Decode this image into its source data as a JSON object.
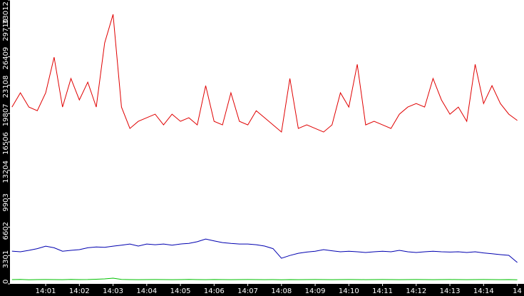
{
  "chart_data": {
    "type": "line",
    "x": [
      840,
      840.25,
      840.5,
      840.75,
      841,
      841.25,
      841.5,
      841.75,
      842,
      842.25,
      842.5,
      842.75,
      843,
      843.25,
      843.5,
      843.75,
      844,
      844.25,
      844.5,
      844.75,
      845,
      845.25,
      845.5,
      845.75,
      846,
      846.25,
      846.5,
      846.75,
      847,
      847.25,
      847.5,
      847.75,
      848,
      848.25,
      848.5,
      848.75,
      849,
      849.25,
      849.5,
      849.75,
      850,
      850.25,
      850.5,
      850.75,
      851,
      851.25,
      851.5,
      851.75,
      852,
      852.25,
      852.5,
      852.75,
      853,
      853.25,
      853.5,
      853.75,
      854,
      854.25,
      854.5,
      854.75,
      855
    ],
    "series": [
      {
        "color": "#e00000",
        "values": [
          20560,
          22220,
          20560,
          20140,
          22220,
          26360,
          20560,
          23880,
          21390,
          23460,
          20560,
          28020,
          31340,
          20560,
          18070,
          18900,
          19320,
          19730,
          18490,
          19730,
          18900,
          19320,
          18490,
          23050,
          18900,
          18490,
          22220,
          18900,
          18490,
          20140,
          19320,
          18490,
          17660,
          23880,
          18070,
          18490,
          18070,
          17660,
          18490,
          22220,
          20560,
          25530,
          18490,
          18900,
          18490,
          18070,
          19730,
          20560,
          20970,
          20560,
          23880,
          21390,
          19730,
          20560,
          18900,
          25530,
          20970,
          23050,
          20970,
          19730,
          19000
        ]
      },
      {
        "color": "#0000b0",
        "values": [
          3810,
          3730,
          3900,
          4100,
          4390,
          4200,
          3800,
          3900,
          3980,
          4200,
          4300,
          4250,
          4390,
          4500,
          4640,
          4400,
          4640,
          4550,
          4640,
          4500,
          4640,
          4700,
          4900,
          5220,
          5000,
          4800,
          4700,
          4640,
          4640,
          4550,
          4400,
          4100,
          2980,
          3300,
          3560,
          3700,
          3800,
          3980,
          3850,
          3730,
          3800,
          3730,
          3650,
          3730,
          3800,
          3730,
          3900,
          3730,
          3650,
          3730,
          3800,
          3730,
          3700,
          3730,
          3650,
          3730,
          3600,
          3500,
          3400,
          3320,
          2490
        ]
      },
      {
        "color": "#00c000",
        "values": [
          500,
          520,
          480,
          500,
          510,
          500,
          490,
          520,
          500,
          510,
          540,
          580,
          660,
          520,
          500,
          490,
          500,
          510,
          500,
          490,
          500,
          520,
          500,
          490,
          510,
          500,
          490,
          500,
          510,
          500,
          490,
          500,
          480,
          500,
          490,
          500,
          510,
          500,
          490,
          500,
          510,
          500,
          490,
          500,
          510,
          500,
          490,
          500,
          510,
          500,
          490,
          500,
          510,
          500,
          490,
          500,
          510,
          500,
          490,
          500,
          480
        ]
      }
    ],
    "xlim": [
      839.94,
      855.2
    ],
    "xticks": [
      {
        "value": 841,
        "label": "14:01"
      },
      {
        "value": 842,
        "label": "14:02"
      },
      {
        "value": 843,
        "label": "14:03"
      },
      {
        "value": 844,
        "label": "14:04"
      },
      {
        "value": 845,
        "label": "14:05"
      },
      {
        "value": 846,
        "label": "14:06"
      },
      {
        "value": 847,
        "label": "14:07"
      },
      {
        "value": 848,
        "label": "14:08"
      },
      {
        "value": 849,
        "label": "14:09"
      },
      {
        "value": 850,
        "label": "14:10"
      },
      {
        "value": 851,
        "label": "14:11"
      },
      {
        "value": 852,
        "label": "14:12"
      },
      {
        "value": 853,
        "label": "14:13"
      },
      {
        "value": 854,
        "label": "14:14"
      },
      {
        "value": 855,
        "label": "14"
      }
    ],
    "ylim": [
      0,
      33012
    ],
    "yticks": [
      0,
      3301,
      6602,
      9903,
      13204,
      16506,
      19807,
      23108,
      26409,
      29710,
      33012
    ]
  }
}
